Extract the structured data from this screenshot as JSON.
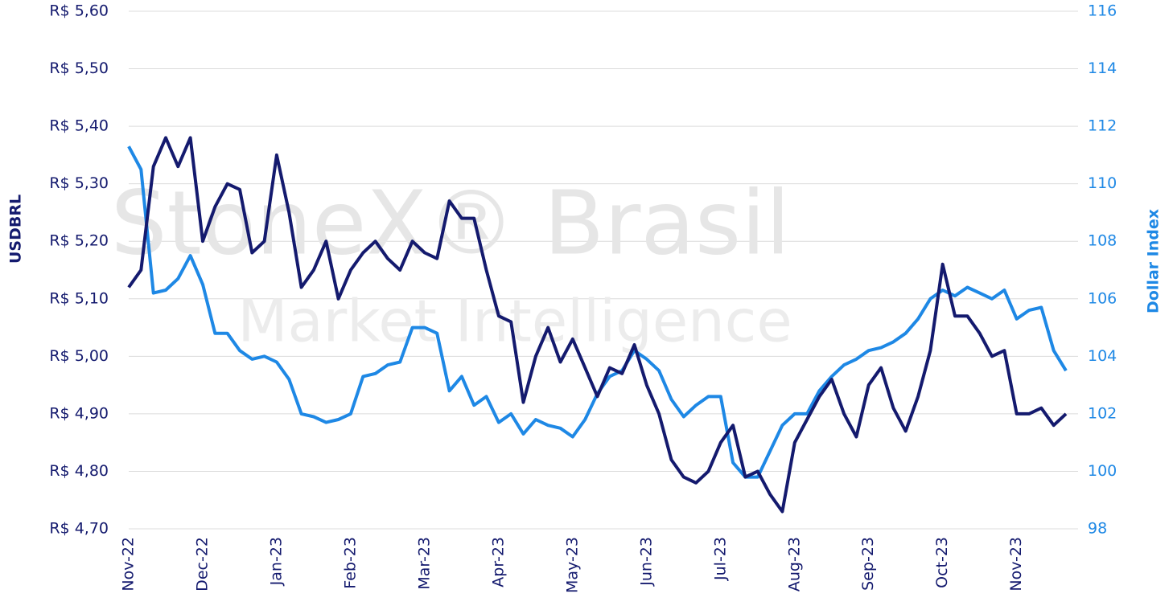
{
  "chart_data": {
    "type": "line",
    "watermark": [
      "StoneX® Brasil",
      "Market Intelligence"
    ],
    "categories": [
      "Nov-22",
      null,
      null,
      null,
      null,
      null,
      "Dec-22",
      null,
      null,
      null,
      null,
      null,
      "Jan-23",
      null,
      null,
      null,
      null,
      null,
      "Feb-23",
      null,
      null,
      null,
      null,
      null,
      "Mar-23",
      null,
      null,
      null,
      null,
      null,
      "Apr-23",
      null,
      null,
      null,
      null,
      null,
      "May-23",
      null,
      null,
      null,
      null,
      null,
      "Jun-23",
      null,
      null,
      null,
      null,
      null,
      "Jul-23",
      null,
      null,
      null,
      null,
      null,
      "Aug-23",
      null,
      null,
      null,
      null,
      null,
      "Sep-23",
      null,
      null,
      null,
      null,
      null,
      "Oct-23",
      null,
      null,
      null,
      null,
      null,
      "Nov-23",
      null,
      null,
      null,
      null
    ],
    "series": [
      {
        "name": "USDBRL",
        "color": "#141a6e",
        "values": [
          5.12,
          5.15,
          5.33,
          5.38,
          5.33,
          5.38,
          5.2,
          5.26,
          5.3,
          5.29,
          5.18,
          5.2,
          5.35,
          5.25,
          5.12,
          5.15,
          5.2,
          5.1,
          5.15,
          5.18,
          5.2,
          5.17,
          5.15,
          5.2,
          5.18,
          5.17,
          5.27,
          5.24,
          5.24,
          5.15,
          5.07,
          5.06,
          4.92,
          5.0,
          5.05,
          4.99,
          5.03,
          4.98,
          4.93,
          4.98,
          4.97,
          5.02,
          4.95,
          4.9,
          4.82,
          4.79,
          4.78,
          4.8,
          4.85,
          4.88,
          4.79,
          4.8,
          4.76,
          4.73,
          4.85,
          4.89,
          4.93,
          4.96,
          4.9,
          4.86,
          4.95,
          4.98,
          4.91,
          4.87,
          4.93,
          5.01,
          5.16,
          5.07,
          5.07,
          5.04,
          5.0,
          5.01,
          4.9,
          4.9,
          4.91,
          4.88,
          4.9
        ]
      },
      {
        "name": "Dollar Index",
        "color": "#1e88e5",
        "axis": "y2",
        "values": [
          111.3,
          110.5,
          106.2,
          106.3,
          106.7,
          107.5,
          106.5,
          104.8,
          104.8,
          104.2,
          103.9,
          104.0,
          103.8,
          103.2,
          102.0,
          101.9,
          101.7,
          101.8,
          102.0,
          103.3,
          103.4,
          103.7,
          103.8,
          105.0,
          105.0,
          104.8,
          102.8,
          103.3,
          102.3,
          102.6,
          101.7,
          102.0,
          101.3,
          101.8,
          101.6,
          101.5,
          101.2,
          101.8,
          102.7,
          103.3,
          103.5,
          104.2,
          103.9,
          103.5,
          102.5,
          101.9,
          102.3,
          102.6,
          102.6,
          100.3,
          99.8,
          99.8,
          100.7,
          101.6,
          102.0,
          102.0,
          102.8,
          103.3,
          103.7,
          103.9,
          104.2,
          104.3,
          104.5,
          104.8,
          105.3,
          106.0,
          106.3,
          106.1,
          106.4,
          106.2,
          106.0,
          106.3,
          105.3,
          105.6,
          105.7,
          104.2,
          103.5
        ]
      }
    ],
    "ylim": [
      4.7,
      5.6
    ],
    "yticks": [
      {
        "value": 4.7,
        "label": "R$ 4,70"
      },
      {
        "value": 4.8,
        "label": "R$ 4,80"
      },
      {
        "value": 4.9,
        "label": "R$ 4,90"
      },
      {
        "value": 5.0,
        "label": "R$ 5,00"
      },
      {
        "value": 5.1,
        "label": "R$ 5,10"
      },
      {
        "value": 5.2,
        "label": "R$ 5,20"
      },
      {
        "value": 5.3,
        "label": "R$ 5,30"
      },
      {
        "value": 5.4,
        "label": "R$ 5,40"
      },
      {
        "value": 5.5,
        "label": "R$ 5,50"
      },
      {
        "value": 5.6,
        "label": "R$ 5,60"
      }
    ],
    "y2lim": [
      98,
      116
    ],
    "y2ticks": [
      98,
      100,
      102,
      104,
      106,
      108,
      110,
      112,
      114,
      116
    ],
    "grid": true
  }
}
